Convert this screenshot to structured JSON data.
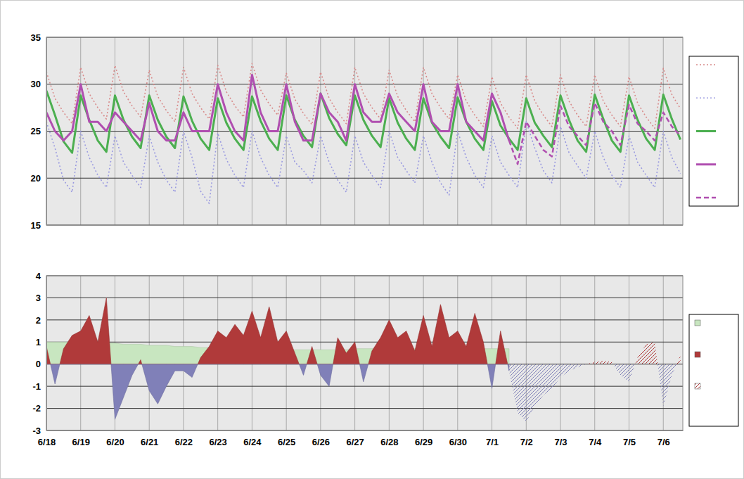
{
  "chart_data": [
    {
      "type": "line",
      "x": [
        0,
        0.25,
        0.5,
        0.75,
        1,
        1.25,
        1.5,
        1.75,
        2,
        2.25,
        2.5,
        2.75,
        3,
        3.25,
        3.5,
        3.75,
        4,
        4.25,
        4.5,
        4.75,
        5,
        5.25,
        5.5,
        5.75,
        6,
        6.25,
        6.5,
        6.75,
        7,
        7.25,
        7.5,
        7.75,
        8,
        8.25,
        8.5,
        8.75,
        9,
        9.25,
        9.5,
        9.75,
        10,
        10.25,
        10.5,
        10.75,
        11,
        11.25,
        11.5,
        11.75,
        12,
        12.25,
        12.5,
        12.75,
        13,
        13.25,
        13.5,
        13.75,
        14,
        14.25,
        14.5,
        14.75,
        15,
        15.25,
        15.5,
        15.75,
        16,
        16.25,
        16.5,
        16.75,
        17,
        17.25,
        17.5,
        17.75,
        18,
        18.25,
        18.5
      ],
      "xlim": [
        0,
        18.57
      ],
      "xticks": [
        0,
        1,
        2,
        3,
        4,
        5,
        6,
        7,
        8,
        9,
        10,
        11,
        12,
        13,
        14,
        15,
        16,
        17,
        18
      ],
      "ylim": [
        15,
        35
      ],
      "yticks": [
        15,
        20,
        25,
        30,
        35
      ],
      "grid": true,
      "tick_labels": "y",
      "series": [
        {
          "color": "#d88a8a",
          "line_style": "dotted",
          "values": [
            31.3,
            28.5,
            27.0,
            25.8,
            31.8,
            29.0,
            27.5,
            26.3,
            32.0,
            29.2,
            27.7,
            26.5,
            31.5,
            28.7,
            27.2,
            26.0,
            31.8,
            29.0,
            27.5,
            26.3,
            32.0,
            29.2,
            27.7,
            26.5,
            32.2,
            29.4,
            27.9,
            26.7,
            31.2,
            28.4,
            26.9,
            25.7,
            31.3,
            28.5,
            27.0,
            25.8,
            31.8,
            29.0,
            27.5,
            26.3,
            31.5,
            28.7,
            27.2,
            26.0,
            31.8,
            29.0,
            27.5,
            26.3,
            31.0,
            28.2,
            26.7,
            25.5,
            30.8,
            28.0,
            26.5,
            25.3,
            31.0,
            28.2,
            26.7,
            25.5,
            31.0,
            28.2,
            26.7,
            25.5,
            31.0,
            28.2,
            26.7,
            25.5,
            30.8,
            28.0,
            26.5,
            25.3,
            31.7,
            28.9,
            27.4
          ]
        },
        {
          "color": "#9a9ae0",
          "line_style": "dotted",
          "values": [
            26.0,
            23.2,
            19.8,
            18.5,
            25.0,
            22.2,
            20.3,
            19.0,
            24.5,
            21.7,
            20.3,
            19.0,
            24.5,
            21.7,
            19.8,
            18.5,
            25.0,
            22.2,
            18.6,
            17.3,
            24.8,
            22.0,
            20.3,
            19.0,
            25.0,
            22.2,
            20.3,
            19.0,
            24.5,
            21.7,
            20.8,
            19.5,
            24.5,
            21.7,
            19.8,
            18.5,
            24.5,
            21.7,
            20.3,
            19.0,
            25.0,
            22.2,
            20.8,
            19.5,
            24.5,
            21.7,
            19.5,
            18.2,
            25.0,
            22.2,
            20.3,
            19.0,
            24.5,
            21.7,
            20.3,
            19.0,
            26.0,
            23.2,
            20.8,
            19.5,
            25.5,
            22.7,
            21.3,
            20.0,
            25.0,
            22.2,
            20.3,
            19.0,
            24.5,
            21.7,
            20.3,
            19.0,
            25.0,
            22.2,
            20.5
          ]
        },
        {
          "color": "#4caf50",
          "line_style": "solid",
          "values": [
            29.3,
            26.7,
            23.9,
            22.7,
            28.8,
            26.2,
            24.0,
            22.8,
            28.8,
            26.2,
            24.4,
            23.2,
            28.8,
            26.2,
            24.4,
            23.2,
            28.7,
            26.1,
            24.2,
            23.0,
            28.5,
            25.9,
            24.2,
            23.0,
            28.7,
            26.1,
            24.2,
            23.0,
            28.8,
            26.2,
            24.5,
            23.3,
            29.0,
            26.4,
            24.7,
            23.5,
            28.8,
            26.2,
            24.5,
            23.3,
            28.5,
            25.9,
            24.2,
            23.0,
            28.5,
            25.9,
            24.4,
            23.2,
            28.6,
            26.0,
            24.2,
            23.0,
            28.2,
            25.6,
            24.2,
            23.0,
            28.5,
            25.9,
            24.5,
            23.3,
            28.8,
            26.2,
            24.0,
            22.8,
            28.9,
            26.3,
            24.0,
            22.8,
            28.8,
            26.2,
            24.2,
            23.0,
            28.9,
            26.3,
            24.1
          ]
        },
        {
          "color": "#b04fb0",
          "line_style": "solid",
          "values": [
            27,
            25,
            24,
            25,
            30,
            26,
            26,
            25,
            27,
            26,
            25,
            24,
            28,
            25,
            24,
            24,
            27,
            25,
            25,
            25,
            30,
            27,
            25,
            24,
            31,
            27,
            25,
            25,
            30,
            26,
            24,
            24,
            29,
            27,
            26,
            24,
            30,
            27,
            26,
            26,
            29,
            27,
            26,
            25,
            30,
            26,
            25,
            25,
            30,
            26,
            25,
            24,
            29,
            27,
            24,
            null,
            null,
            null,
            null,
            null,
            null,
            null,
            null,
            null,
            null,
            null,
            null,
            null,
            null,
            null,
            null,
            null,
            null,
            null,
            null
          ]
        },
        {
          "color": "#b04fb0",
          "line_style": "dashed",
          "values": [
            null,
            null,
            null,
            null,
            null,
            null,
            null,
            null,
            null,
            null,
            null,
            null,
            null,
            null,
            null,
            null,
            null,
            null,
            null,
            null,
            null,
            null,
            null,
            null,
            null,
            null,
            null,
            null,
            null,
            null,
            null,
            null,
            null,
            null,
            null,
            null,
            null,
            null,
            null,
            null,
            null,
            null,
            null,
            null,
            null,
            null,
            null,
            null,
            null,
            null,
            null,
            null,
            null,
            null,
            24,
            21.5,
            26,
            24.5,
            23,
            22.3,
            27.7,
            25.5,
            24.5,
            23.5,
            28,
            26,
            25,
            23.5,
            27.8,
            25.8,
            25,
            24,
            27,
            25.5,
            24.5
          ]
        }
      ]
    },
    {
      "type": "area",
      "x": [
        0,
        0.25,
        0.5,
        0.75,
        1,
        1.25,
        1.5,
        1.75,
        2,
        2.25,
        2.5,
        2.75,
        3,
        3.25,
        3.5,
        3.75,
        4,
        4.25,
        4.5,
        4.75,
        5,
        5.25,
        5.5,
        5.75,
        6,
        6.25,
        6.5,
        6.75,
        7,
        7.25,
        7.5,
        7.75,
        8,
        8.25,
        8.5,
        8.75,
        9,
        9.25,
        9.5,
        9.75,
        10,
        10.25,
        10.5,
        10.75,
        11,
        11.25,
        11.5,
        11.75,
        12,
        12.25,
        12.5,
        12.75,
        13,
        13.25,
        13.5,
        13.75,
        14,
        14.25,
        14.5,
        14.75,
        15,
        15.25,
        15.5,
        15.75,
        16,
        16.25,
        16.5,
        16.75,
        17,
        17.25,
        17.5,
        17.75,
        18,
        18.25,
        18.5
      ],
      "xlim": [
        0,
        18.57
      ],
      "xticks": [
        {
          "value": 0,
          "label": "6/18"
        },
        {
          "value": 1,
          "label": "6/19"
        },
        {
          "value": 2,
          "label": "6/20"
        },
        {
          "value": 3,
          "label": "6/21"
        },
        {
          "value": 4,
          "label": "6/22"
        },
        {
          "value": 5,
          "label": "6/23"
        },
        {
          "value": 6,
          "label": "6/24"
        },
        {
          "value": 7,
          "label": "6/25"
        },
        {
          "value": 8,
          "label": "6/26"
        },
        {
          "value": 9,
          "label": "6/27"
        },
        {
          "value": 10,
          "label": "6/28"
        },
        {
          "value": 11,
          "label": "6/29"
        },
        {
          "value": 12,
          "label": "6/30"
        },
        {
          "value": 13,
          "label": "7/1"
        },
        {
          "value": 14,
          "label": "7/2"
        },
        {
          "value": 15,
          "label": "7/3"
        },
        {
          "value": 16,
          "label": "7/4"
        },
        {
          "value": 17,
          "label": "7/5"
        },
        {
          "value": 18,
          "label": "7/6"
        }
      ],
      "ylim": [
        -3,
        4
      ],
      "yticks": [
        -3,
        -2,
        -1,
        0,
        1,
        2,
        3,
        4
      ],
      "grid": true,
      "series": [
        {
          "type": "area",
          "color": "#c8e6c0",
          "values": [
            1.0,
            1.0,
            1.0,
            1.0,
            1.0,
            1.0,
            0.95,
            0.95,
            0.95,
            0.9,
            0.9,
            0.9,
            0.85,
            0.85,
            0.85,
            0.8,
            0.8,
            0.8,
            0.75,
            0.75,
            0.75,
            0.7,
            0.7,
            0.7,
            0.7,
            0.65,
            0.65,
            0.65,
            0.65,
            0.65,
            0.65,
            0.65,
            0.65,
            0.65,
            0.65,
            0.65,
            0.7,
            0.7,
            0.7,
            0.7,
            0.7,
            0.7,
            0.7,
            0.7,
            0.7,
            0.7,
            0.7,
            0.7,
            0.7,
            0.7,
            0.7,
            0.7,
            0.7,
            0.7,
            0.7,
            null,
            null,
            null,
            null,
            null,
            null,
            null,
            null,
            null,
            null,
            null,
            null,
            null,
            null,
            null,
            null,
            null,
            null,
            null,
            null
          ]
        },
        {
          "type": "area",
          "color": "#b03a3a",
          "values": [
            0.8,
            -0.9,
            0.7,
            1.3,
            1.5,
            2.2,
            1.0,
            3.0,
            -2.5,
            -1.5,
            -0.5,
            0.2,
            -1.2,
            -1.8,
            -1.0,
            -0.3,
            -0.3,
            -0.6,
            0.3,
            0.8,
            1.5,
            1.2,
            1.8,
            1.3,
            2.4,
            1.2,
            2.6,
            1.0,
            1.5,
            0.5,
            -0.5,
            0.8,
            -0.5,
            -1.0,
            1.2,
            0.5,
            1.0,
            -0.8,
            0.6,
            1.2,
            2.0,
            1.2,
            1.5,
            0.6,
            2.2,
            0.8,
            2.7,
            1.2,
            1.5,
            0.8,
            2.3,
            1.0,
            -1.1,
            1.5,
            -0.3,
            null,
            null,
            null,
            null,
            null,
            null,
            null,
            null,
            null,
            null,
            null,
            null,
            null,
            null,
            null,
            null,
            null,
            null,
            null,
            null
          ]
        },
        {
          "type": "hatched",
          "color": "#b03a3a",
          "values": [
            null,
            null,
            null,
            null,
            null,
            null,
            null,
            null,
            null,
            null,
            null,
            null,
            null,
            null,
            null,
            null,
            null,
            null,
            null,
            null,
            null,
            null,
            null,
            null,
            null,
            null,
            null,
            null,
            null,
            null,
            null,
            null,
            null,
            null,
            null,
            null,
            null,
            null,
            null,
            null,
            null,
            null,
            null,
            null,
            null,
            null,
            null,
            null,
            null,
            null,
            null,
            null,
            null,
            null,
            -0.3,
            -2.2,
            -2.6,
            -1.9,
            -1.4,
            -1.1,
            -0.6,
            -0.3,
            -0.15,
            0.0,
            0.1,
            0.15,
            0.1,
            -0.5,
            -0.8,
            0.3,
            0.9,
            1.0,
            -1.9,
            -0.5,
            0.4
          ]
        }
      ]
    }
  ]
}
